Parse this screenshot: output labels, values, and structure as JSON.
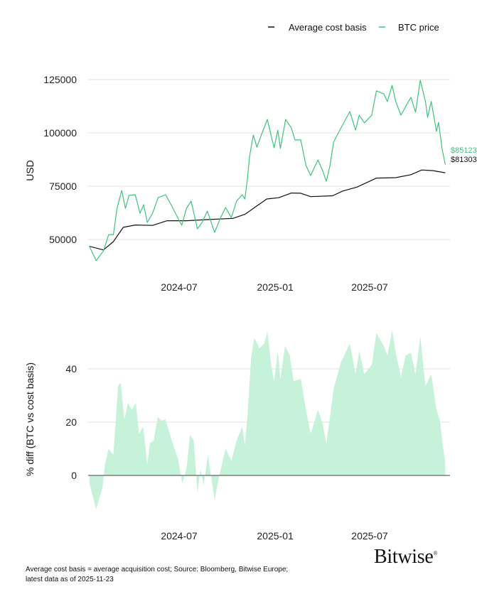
{
  "legend": [
    {
      "label": "Average cost basis",
      "color": "#111111"
    },
    {
      "label": "BTC price",
      "color": "#3cc47c"
    }
  ],
  "footnote": {
    "line1": "Average cost basis = average acquisition cost; Source: Bloomberg, Bitwise Europe;",
    "line2": "latest data as of 2025-11-23"
  },
  "logo": "Bitwise",
  "chart_data": [
    {
      "type": "line",
      "ylabel": "USD",
      "ylim": [
        35000,
        130000
      ],
      "yticks": [
        "50000",
        "75000",
        "100000",
        "125000"
      ],
      "xticks": [
        "2024-07",
        "2025-01",
        "2025-07"
      ],
      "grid": true,
      "legend_position": "top-right",
      "end_labels": {
        "btc": "$85123",
        "cost": "$81303"
      },
      "series": [
        {
          "name": "BTC price",
          "color": "#3cc47c",
          "points": [
            [
              "2024-01-11",
              46800
            ],
            [
              "2024-01-24",
              40100
            ],
            [
              "2024-02-07",
              44600
            ],
            [
              "2024-02-17",
              52300
            ],
            [
              "2024-02-26",
              52300
            ],
            [
              "2024-03-04",
              64600
            ],
            [
              "2024-03-13",
              73000
            ],
            [
              "2024-03-20",
              64600
            ],
            [
              "2024-03-27",
              70700
            ],
            [
              "2024-04-08",
              71000
            ],
            [
              "2024-04-17",
              62300
            ],
            [
              "2024-04-24",
              66300
            ],
            [
              "2024-05-01",
              58000
            ],
            [
              "2024-05-11",
              62300
            ],
            [
              "2024-05-22",
              69700
            ],
            [
              "2024-06-05",
              71000
            ],
            [
              "2024-06-17",
              65700
            ],
            [
              "2024-06-26",
              61300
            ],
            [
              "2024-07-06",
              56700
            ],
            [
              "2024-07-15",
              64600
            ],
            [
              "2024-07-24",
              68000
            ],
            [
              "2024-08-05",
              55000
            ],
            [
              "2024-08-14",
              58000
            ],
            [
              "2024-08-24",
              63300
            ],
            [
              "2024-09-07",
              53300
            ],
            [
              "2024-09-18",
              60000
            ],
            [
              "2024-09-28",
              65000
            ],
            [
              "2024-10-09",
              60300
            ],
            [
              "2024-10-19",
              68000
            ],
            [
              "2024-10-30",
              71000
            ],
            [
              "2024-11-04",
              69000
            ],
            [
              "2024-11-09",
              79000
            ],
            [
              "2024-11-13",
              89000
            ],
            [
              "2024-11-20",
              99000
            ],
            [
              "2024-11-27",
              93300
            ],
            [
              "2024-12-07",
              100000
            ],
            [
              "2024-12-17",
              106300
            ],
            [
              "2024-12-30",
              93000
            ],
            [
              "2025-01-06",
              101300
            ],
            [
              "2025-01-11",
              92700
            ],
            [
              "2025-01-21",
              106300
            ],
            [
              "2025-02-01",
              102300
            ],
            [
              "2025-02-08",
              96700
            ],
            [
              "2025-02-19",
              96700
            ],
            [
              "2025-03-01",
              84700
            ],
            [
              "2025-03-10",
              80000
            ],
            [
              "2025-03-24",
              87300
            ],
            [
              "2025-04-02",
              82300
            ],
            [
              "2025-04-09",
              77300
            ],
            [
              "2025-04-16",
              84700
            ],
            [
              "2025-04-23",
              95700
            ],
            [
              "2025-05-07",
              102300
            ],
            [
              "2025-05-24",
              110000
            ],
            [
              "2025-06-04",
              101300
            ],
            [
              "2025-06-11",
              108300
            ],
            [
              "2025-06-21",
              104700
            ],
            [
              "2025-07-05",
              108300
            ],
            [
              "2025-07-14",
              119700
            ],
            [
              "2025-07-28",
              118300
            ],
            [
              "2025-08-04",
              114700
            ],
            [
              "2025-08-13",
              122300
            ],
            [
              "2025-08-20",
              114700
            ],
            [
              "2025-08-30",
              108300
            ],
            [
              "2025-09-08",
              112300
            ],
            [
              "2025-09-18",
              116700
            ],
            [
              "2025-09-27",
              109700
            ],
            [
              "2025-10-06",
              124700
            ],
            [
              "2025-10-16",
              114700
            ],
            [
              "2025-10-20",
              107300
            ],
            [
              "2025-10-27",
              114700
            ],
            [
              "2025-11-06",
              100700
            ],
            [
              "2025-11-10",
              105000
            ],
            [
              "2025-11-17",
              92300
            ],
            [
              "2025-11-23",
              85123
            ]
          ]
        },
        {
          "name": "Average cost basis",
          "color": "#111111",
          "points": [
            [
              "2024-01-11",
              46800
            ],
            [
              "2024-02-07",
              45100
            ],
            [
              "2024-02-26",
              49000
            ],
            [
              "2024-03-16",
              55700
            ],
            [
              "2024-04-08",
              56800
            ],
            [
              "2024-05-11",
              56600
            ],
            [
              "2024-06-08",
              58800
            ],
            [
              "2024-07-15",
              58800
            ],
            [
              "2024-08-21",
              59300
            ],
            [
              "2024-10-12",
              59900
            ],
            [
              "2024-11-04",
              61800
            ],
            [
              "2024-11-23",
              65100
            ],
            [
              "2024-12-16",
              69000
            ],
            [
              "2025-01-08",
              69600
            ],
            [
              "2025-02-01",
              71800
            ],
            [
              "2025-02-19",
              71700
            ],
            [
              "2025-03-10",
              70100
            ],
            [
              "2025-04-21",
              70500
            ],
            [
              "2025-05-10",
              72700
            ],
            [
              "2025-06-07",
              74600
            ],
            [
              "2025-07-14",
              78800
            ],
            [
              "2025-08-20",
              79000
            ],
            [
              "2025-09-18",
              80400
            ],
            [
              "2025-10-09",
              82600
            ],
            [
              "2025-10-30",
              82300
            ],
            [
              "2025-11-23",
              81303
            ]
          ]
        }
      ]
    },
    {
      "type": "area",
      "ylabel": "% diff (BTC vs cost basis)",
      "ylim": [
        -20,
        60
      ],
      "yticks": [
        "0",
        "20",
        "40"
      ],
      "xticks": [
        "2024-07",
        "2025-01",
        "2025-07"
      ],
      "grid": true,
      "color": "#c6f2da",
      "series": [
        {
          "points": [
            [
              "2024-01-11",
              -2.9
            ],
            [
              "2024-01-24",
              -12.7
            ],
            [
              "2024-02-05",
              -4.7
            ],
            [
              "2024-02-10",
              4.2
            ],
            [
              "2024-02-17",
              10
            ],
            [
              "2024-02-26",
              7.7
            ],
            [
              "2024-03-06",
              33.5
            ],
            [
              "2024-03-11",
              34.8
            ],
            [
              "2024-03-18",
              21
            ],
            [
              "2024-03-25",
              27.3
            ],
            [
              "2024-04-01",
              24.6
            ],
            [
              "2024-04-09",
              27.3
            ],
            [
              "2024-04-15",
              15.6
            ],
            [
              "2024-04-23",
              18.4
            ],
            [
              "2024-05-01",
              4.2
            ],
            [
              "2024-05-06",
              12.2
            ],
            [
              "2024-05-13",
              13
            ],
            [
              "2024-05-21",
              21.8
            ],
            [
              "2024-05-29",
              20.6
            ],
            [
              "2024-06-05",
              21
            ],
            [
              "2024-06-17",
              13
            ],
            [
              "2024-06-29",
              6
            ],
            [
              "2024-07-07",
              -2.9
            ],
            [
              "2024-07-15",
              2.4
            ],
            [
              "2024-07-22",
              15.3
            ],
            [
              "2024-07-29",
              13
            ],
            [
              "2024-08-05",
              -6.5
            ],
            [
              "2024-08-11",
              2.4
            ],
            [
              "2024-08-17",
              -3.8
            ],
            [
              "2024-08-25",
              7.7
            ],
            [
              "2024-09-07",
              -9.2
            ],
            [
              "2024-09-16",
              0
            ],
            [
              "2024-09-28",
              10
            ],
            [
              "2024-10-09",
              5.5
            ],
            [
              "2024-10-19",
              13
            ],
            [
              "2024-10-30",
              18.4
            ],
            [
              "2024-11-04",
              11.3
            ],
            [
              "2024-11-09",
              22.8
            ],
            [
              "2024-11-16",
              44.2
            ],
            [
              "2024-11-22",
              51.7
            ],
            [
              "2024-12-02",
              47.7
            ],
            [
              "2024-12-11",
              49.5
            ],
            [
              "2024-12-17",
              54
            ],
            [
              "2024-12-25",
              40.6
            ],
            [
              "2024-12-30",
              35.3
            ],
            [
              "2025-01-06",
              46.8
            ],
            [
              "2025-01-11",
              36.2
            ],
            [
              "2025-01-20",
              48.6
            ],
            [
              "2025-01-29",
              45
            ],
            [
              "2025-02-05",
              35.3
            ],
            [
              "2025-02-19",
              36.2
            ],
            [
              "2025-03-01",
              24.6
            ],
            [
              "2025-03-10",
              15.7
            ],
            [
              "2025-03-24",
              24.6
            ],
            [
              "2025-04-02",
              19.3
            ],
            [
              "2025-04-09",
              12.2
            ],
            [
              "2025-04-16",
              22
            ],
            [
              "2025-04-23",
              32.6
            ],
            [
              "2025-05-07",
              42.4
            ],
            [
              "2025-05-24",
              49.5
            ],
            [
              "2025-06-04",
              38
            ],
            [
              "2025-06-11",
              46.8
            ],
            [
              "2025-06-21",
              38
            ],
            [
              "2025-07-05",
              41.5
            ],
            [
              "2025-07-14",
              53.5
            ],
            [
              "2025-07-28",
              48.6
            ],
            [
              "2025-08-04",
              45
            ],
            [
              "2025-08-13",
              54.4
            ],
            [
              "2025-08-20",
              46
            ],
            [
              "2025-08-30",
              37
            ],
            [
              "2025-09-08",
              45
            ],
            [
              "2025-09-18",
              46
            ],
            [
              "2025-09-27",
              38
            ],
            [
              "2025-10-06",
              52.2
            ],
            [
              "2025-10-16",
              33.5
            ],
            [
              "2025-10-27",
              38
            ],
            [
              "2025-11-06",
              24.6
            ],
            [
              "2025-11-13",
              20.2
            ],
            [
              "2025-11-17",
              13
            ],
            [
              "2025-11-23",
              4.7
            ]
          ]
        }
      ]
    }
  ]
}
